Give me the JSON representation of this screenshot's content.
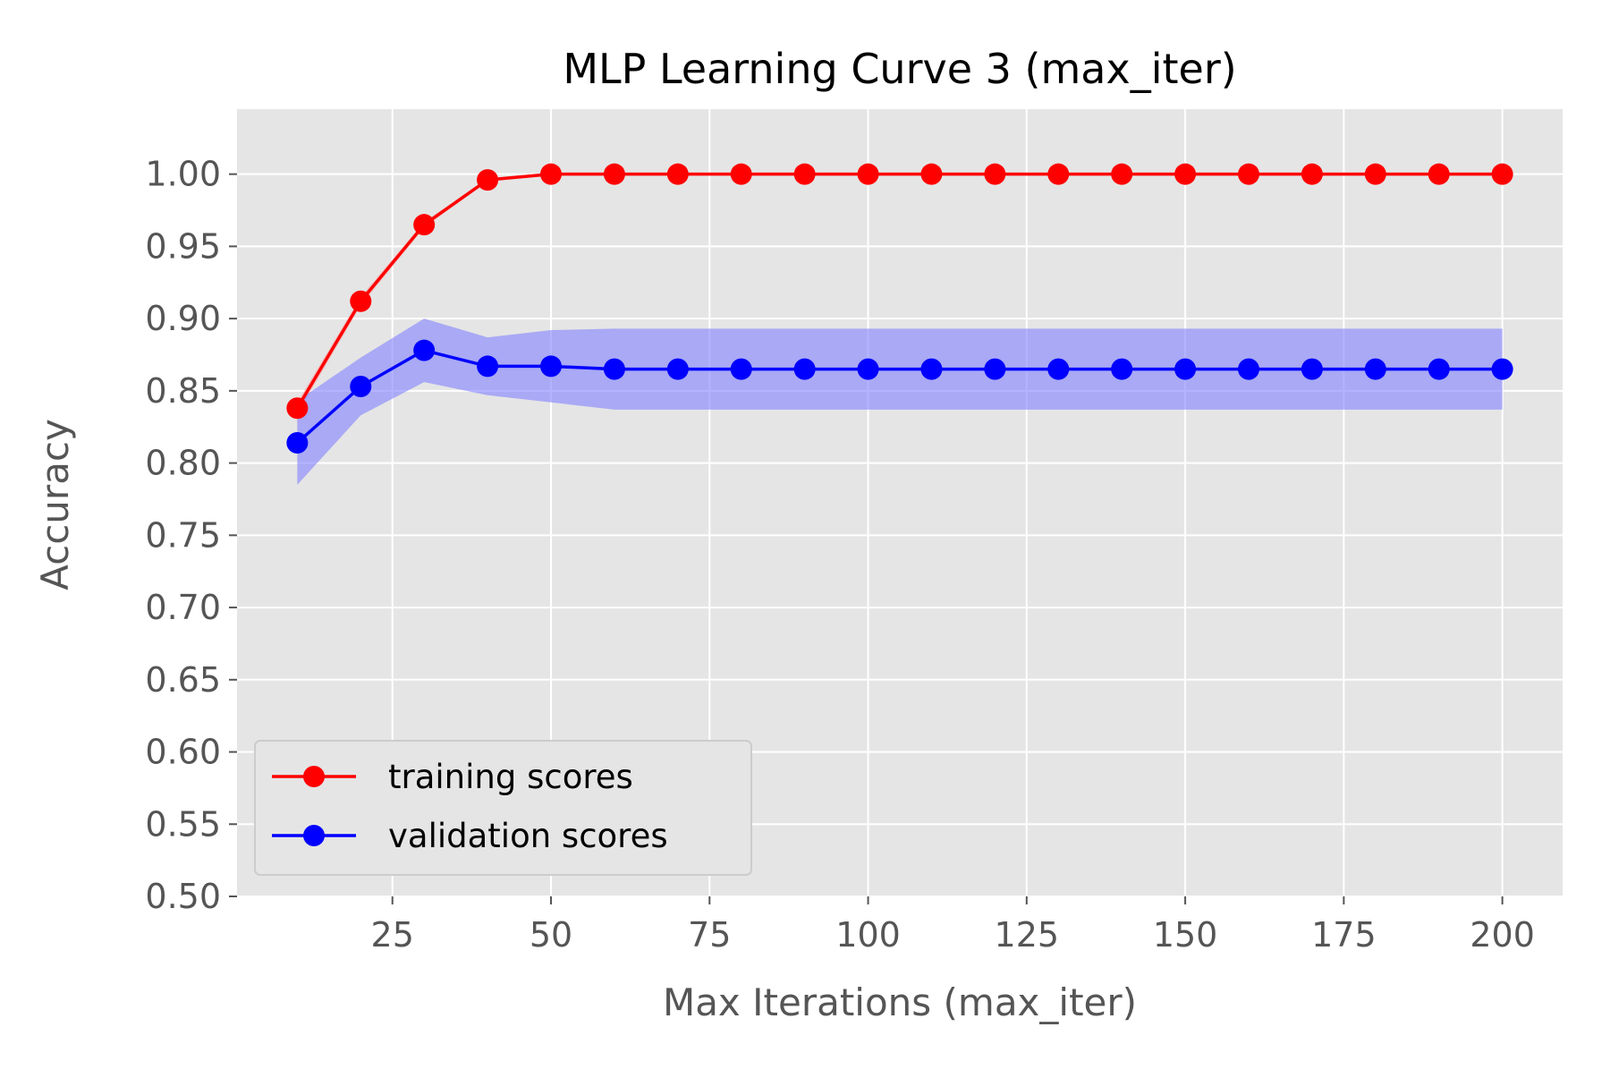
{
  "chart_data": {
    "type": "line",
    "title": "MLP Learning Curve 3 (max_iter)",
    "xlabel": "Max Iterations (max_iter)",
    "ylabel": "Accuracy",
    "xlim": [
      0.5,
      209.5
    ],
    "ylim": [
      0.5,
      1.045
    ],
    "xticks": [
      25,
      50,
      75,
      100,
      125,
      150,
      175,
      200
    ],
    "yticks": [
      0.5,
      0.55,
      0.6,
      0.65,
      0.7,
      0.75,
      0.8,
      0.85,
      0.9,
      0.95,
      1.0
    ],
    "grid": true,
    "legend_position": "lower-left",
    "x": [
      10,
      20,
      30,
      40,
      50,
      60,
      70,
      80,
      90,
      100,
      110,
      120,
      130,
      140,
      150,
      160,
      170,
      180,
      190,
      200
    ],
    "series": [
      {
        "name": "training scores",
        "color": "#ff0000",
        "band_color": "#ff8080",
        "values": [
          0.838,
          0.912,
          0.965,
          0.996,
          1.0,
          1.0,
          1.0,
          1.0,
          1.0,
          1.0,
          1.0,
          1.0,
          1.0,
          1.0,
          1.0,
          1.0,
          1.0,
          1.0,
          1.0,
          1.0
        ],
        "std": [
          0.004,
          0.003,
          0.002,
          0.001,
          0,
          0,
          0,
          0,
          0,
          0,
          0,
          0,
          0,
          0,
          0,
          0,
          0,
          0,
          0,
          0
        ]
      },
      {
        "name": "validation scores",
        "color": "#0000ff",
        "band_color": "#8080ff",
        "values": [
          0.814,
          0.853,
          0.878,
          0.867,
          0.867,
          0.865,
          0.865,
          0.865,
          0.865,
          0.865,
          0.865,
          0.865,
          0.865,
          0.865,
          0.865,
          0.865,
          0.865,
          0.865,
          0.865,
          0.865
        ],
        "std": [
          0.029,
          0.02,
          0.022,
          0.02,
          0.025,
          0.028,
          0.028,
          0.028,
          0.028,
          0.028,
          0.028,
          0.028,
          0.028,
          0.028,
          0.028,
          0.028,
          0.028,
          0.028,
          0.028,
          0.028
        ]
      }
    ],
    "background": "#e5e5e5",
    "grid_color": "#ffffff",
    "tick_text_color": "#555555"
  }
}
